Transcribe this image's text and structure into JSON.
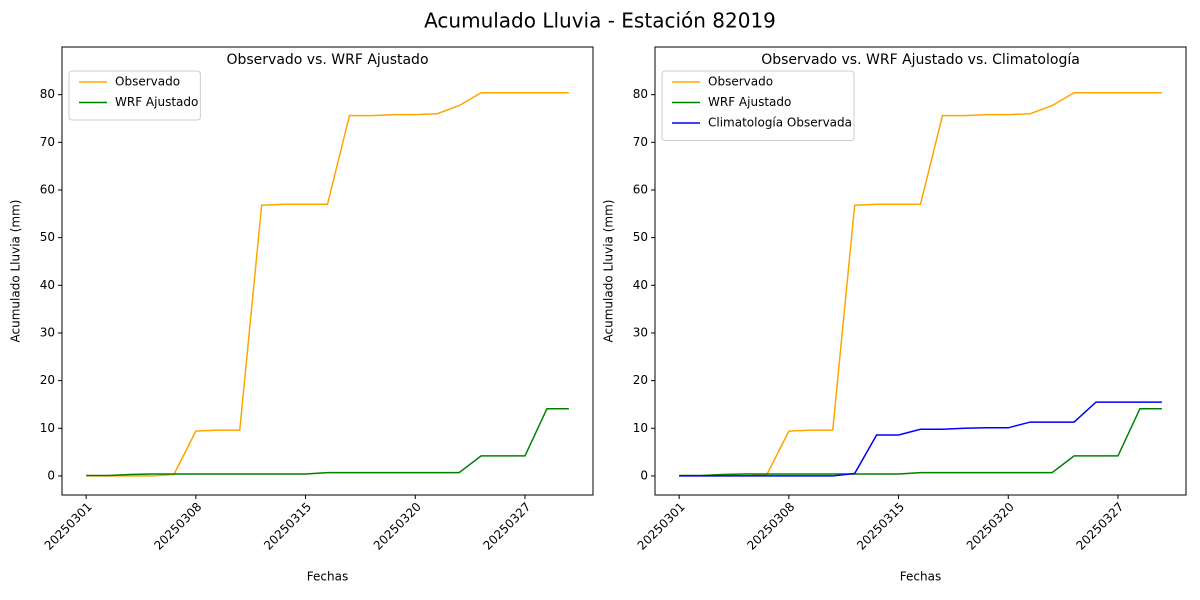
{
  "title": "Acumulado Lluvia - Estación 82019",
  "chart_data": [
    {
      "type": "line",
      "title": "Observado vs. WRF Ajustado",
      "xlabel": "Fechas",
      "ylabel": "Acumulado Lluvia (mm)",
      "categories": [
        "20250301",
        null,
        null,
        null,
        null,
        "20250308",
        null,
        null,
        null,
        null,
        "20250315",
        null,
        null,
        null,
        null,
        "20250320",
        null,
        null,
        null,
        null,
        "20250327",
        null,
        null
      ],
      "series": [
        {
          "name": "Observado",
          "color": "orange",
          "values": [
            0,
            0,
            0,
            0,
            0.3,
            9.4,
            9.6,
            9.6,
            56.8,
            57.0,
            57.0,
            57.0,
            75.6,
            75.6,
            75.8,
            75.8,
            76.0,
            77.7,
            80.4,
            80.4,
            80.4,
            80.4,
            80.4
          ]
        },
        {
          "name": "WRF Ajustado",
          "color": "green",
          "values": [
            0.1,
            0.1,
            0.3,
            0.4,
            0.4,
            0.4,
            0.4,
            0.4,
            0.4,
            0.4,
            0.4,
            0.7,
            0.7,
            0.7,
            0.7,
            0.7,
            0.7,
            0.7,
            4.2,
            4.2,
            4.2,
            14.1,
            14.1
          ]
        }
      ],
      "ylim": [
        -4,
        90
      ],
      "yticks": [
        0,
        10,
        20,
        30,
        40,
        50,
        60,
        70,
        80
      ],
      "legend": "upper left"
    },
    {
      "type": "line",
      "title": "Observado vs. WRF Ajustado vs. Climatología",
      "xlabel": "Fechas",
      "ylabel": "Acumulado Lluvia (mm)",
      "categories": [
        "20250301",
        null,
        null,
        null,
        null,
        "20250308",
        null,
        null,
        null,
        null,
        "20250315",
        null,
        null,
        null,
        null,
        "20250320",
        null,
        null,
        null,
        null,
        "20250327",
        null,
        null
      ],
      "series": [
        {
          "name": "Observado",
          "color": "orange",
          "values": [
            0,
            0,
            0,
            0,
            0.3,
            9.4,
            9.6,
            9.6,
            56.8,
            57.0,
            57.0,
            57.0,
            75.6,
            75.6,
            75.8,
            75.8,
            76.0,
            77.7,
            80.4,
            80.4,
            80.4,
            80.4,
            80.4
          ]
        },
        {
          "name": "WRF Ajustado",
          "color": "green",
          "values": [
            0.1,
            0.1,
            0.3,
            0.4,
            0.4,
            0.4,
            0.4,
            0.4,
            0.4,
            0.4,
            0.4,
            0.7,
            0.7,
            0.7,
            0.7,
            0.7,
            0.7,
            0.7,
            4.2,
            4.2,
            4.2,
            14.1,
            14.1
          ]
        },
        {
          "name": "Climatología Observada",
          "color": "blue",
          "values": [
            0,
            0,
            0,
            0,
            0,
            0,
            0,
            0,
            0.5,
            8.6,
            8.6,
            9.8,
            9.8,
            10.0,
            10.1,
            10.1,
            11.3,
            11.3,
            11.3,
            15.5,
            15.5,
            15.5,
            15.5
          ]
        }
      ],
      "ylim": [
        -4,
        90
      ],
      "yticks": [
        0,
        10,
        20,
        30,
        40,
        50,
        60,
        70,
        80
      ],
      "legend": "upper left"
    }
  ]
}
